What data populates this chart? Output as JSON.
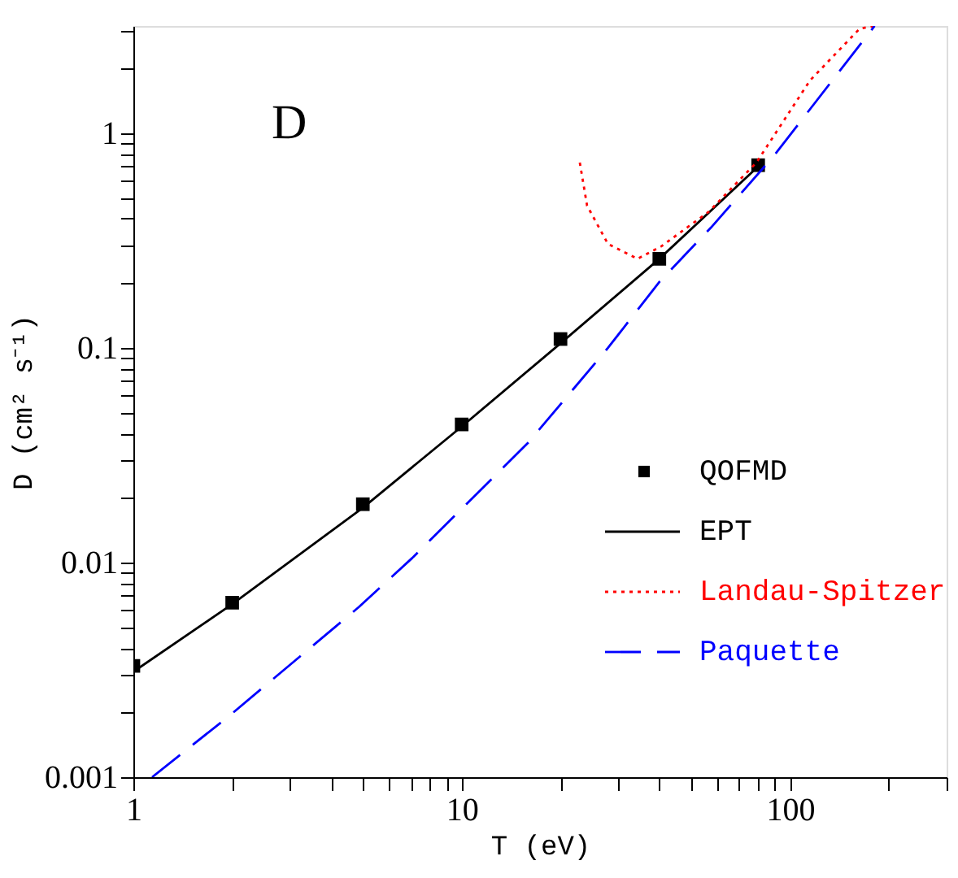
{
  "chart_data": {
    "type": "line",
    "xlabel": "T (eV)",
    "ylabel": "D (cm² s⁻¹)",
    "log": "xy",
    "xlim": [
      1,
      300
    ],
    "ylim": [
      0.001,
      3.16
    ],
    "xticks": [
      1,
      {
        "value": 2,
        "label": null
      },
      {
        "value": 3,
        "label": null
      },
      {
        "value": 4,
        "label": null
      },
      {
        "value": 5,
        "label": null
      },
      {
        "value": 6,
        "label": null
      },
      {
        "value": 7,
        "label": null
      },
      {
        "value": 8,
        "label": null
      },
      {
        "value": 9,
        "label": null
      },
      10,
      {
        "value": 20,
        "label": null
      },
      {
        "value": 30,
        "label": null
      },
      {
        "value": 40,
        "label": null
      },
      {
        "value": 50,
        "label": null
      },
      {
        "value": 60,
        "label": null
      },
      {
        "value": 70,
        "label": null
      },
      {
        "value": 80,
        "label": null
      },
      {
        "value": 90,
        "label": null
      },
      100,
      {
        "value": 200,
        "label": null
      },
      {
        "value": 300,
        "label": null
      }
    ],
    "yticks": [
      0.001,
      {
        "value": 0.002,
        "label": null
      },
      {
        "value": 0.003,
        "label": null
      },
      {
        "value": 0.004,
        "label": null
      },
      {
        "value": 0.005,
        "label": null
      },
      {
        "value": 0.006,
        "label": null
      },
      {
        "value": 0.007,
        "label": null
      },
      {
        "value": 0.008,
        "label": null
      },
      {
        "value": 0.009,
        "label": null
      },
      0.01,
      {
        "value": 0.02,
        "label": null
      },
      {
        "value": 0.03,
        "label": null
      },
      {
        "value": 0.04,
        "label": null
      },
      {
        "value": 0.05,
        "label": null
      },
      {
        "value": 0.06,
        "label": null
      },
      {
        "value": 0.07,
        "label": null
      },
      {
        "value": 0.08,
        "label": null
      },
      {
        "value": 0.09,
        "label": null
      },
      0.1,
      {
        "value": 0.2,
        "label": null
      },
      {
        "value": 0.3,
        "label": null
      },
      {
        "value": 0.4,
        "label": null
      },
      {
        "value": 0.5,
        "label": null
      },
      {
        "value": 0.6,
        "label": null
      },
      {
        "value": 0.7,
        "label": null
      },
      {
        "value": 0.8,
        "label": null
      },
      {
        "value": 0.9,
        "label": null
      },
      1,
      {
        "value": 2,
        "label": null
      },
      {
        "value": 3,
        "label": null
      }
    ],
    "grid": false,
    "legend": "bottom right",
    "annotations": [
      "D"
    ],
    "series": [
      {
        "name": "QOFMD",
        "type": "scatter",
        "marker": "square",
        "color": "#000000",
        "x": [
          1,
          2,
          5,
          10,
          20,
          40,
          80
        ],
        "values": [
          0.0033,
          0.0065,
          0.0187,
          0.044,
          0.11,
          0.26,
          0.71
        ]
      },
      {
        "name": "EPT",
        "type": "line",
        "line_style": "solid",
        "color": "#000000",
        "x": [
          1,
          2,
          5,
          10,
          20,
          40,
          80
        ],
        "values": [
          0.0031,
          0.0064,
          0.018,
          0.043,
          0.105,
          0.26,
          0.7
        ]
      },
      {
        "name": "Landau-Spitzer",
        "type": "line",
        "line_style": "dotted",
        "color": "#ff0000",
        "x": [
          22.9,
          24.1,
          27.9,
          34.3,
          40.5,
          56.5,
          79,
          115,
          163,
          181
        ],
        "values": [
          0.73,
          0.46,
          0.305,
          0.26,
          0.297,
          0.43,
          0.73,
          1.76,
          3.07,
          3.16
        ]
      },
      {
        "name": "Paquette",
        "type": "line",
        "line_style": "dashed",
        "color": "#0000ff",
        "x": [
          1.14,
          1.95,
          4.86,
          7.07,
          10,
          15.9,
          27.9,
          40,
          57.5,
          89,
          181
        ],
        "values": [
          0.001,
          0.00192,
          0.0062,
          0.0105,
          0.0178,
          0.036,
          0.1,
          0.203,
          0.364,
          0.78,
          3.16
        ]
      }
    ]
  }
}
